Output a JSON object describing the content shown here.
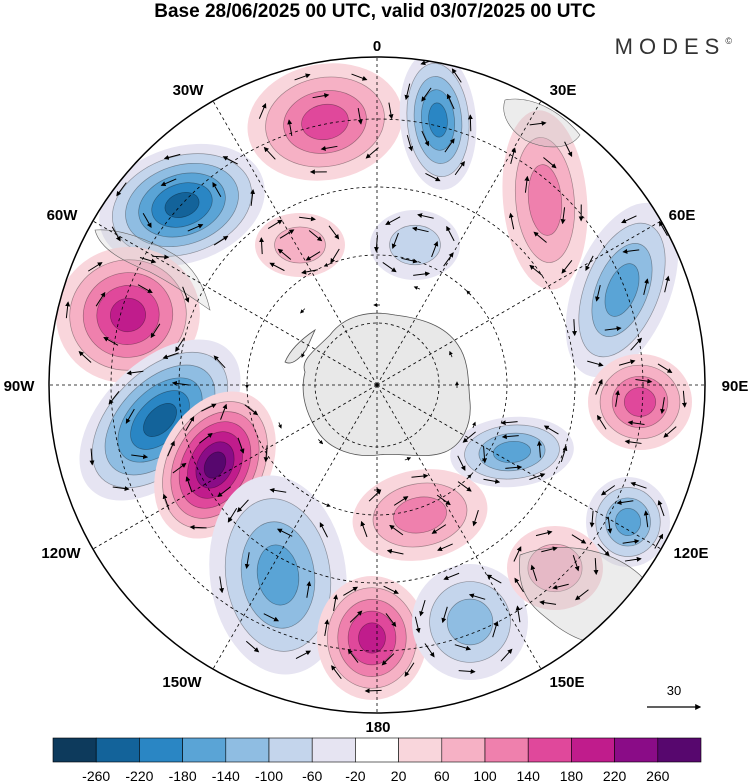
{
  "title": "Base 28/06/2025 00 UTC, valid 03/07/2025 00 UTC",
  "brand": "MODES",
  "brand_mark": "©",
  "longitude_labels": {
    "top": "0",
    "top_right": "30E",
    "right_upper": "60E",
    "right": "90E",
    "right_lower": "120E",
    "bottom_right": "150E",
    "bottom": "180",
    "bottom_left": "150W",
    "left_lower": "120W",
    "left": "90W",
    "left_upper": "60W",
    "top_left": "30W"
  },
  "reference_vector_label": "30",
  "colorbar": {
    "tick_labels": [
      "-260",
      "-220",
      "-180",
      "-140",
      "-100",
      "-60",
      "-20",
      "20",
      "60",
      "100",
      "140",
      "180",
      "220",
      "260"
    ],
    "colors": [
      "#0d3a5c",
      "#13639a",
      "#2a86c4",
      "#5aa4d6",
      "#8fbde2",
      "#c4d5ec",
      "#e6e4f2",
      "#ffffff",
      "#f9d6dc",
      "#f6b1c5",
      "#ef80ad",
      "#e0489b",
      "#c01c8c",
      "#8a0c87",
      "#57076e"
    ]
  },
  "fill_colors": {
    "land": "#e8e8e8",
    "neg_light": "#e6e4f2",
    "neg_1": "#c4d5ec",
    "neg_2": "#8fbde2",
    "neg_3": "#5aa4d6",
    "neg_4": "#2a86c4",
    "neg_5": "#13639a",
    "pos_light": "#f9d6dc",
    "pos_1": "#f6b1c5",
    "pos_2": "#ef80ad",
    "pos_3": "#e0489b",
    "pos_4": "#c01c8c",
    "pos_5": "#8a0c87",
    "pos_6": "#57076e"
  }
}
